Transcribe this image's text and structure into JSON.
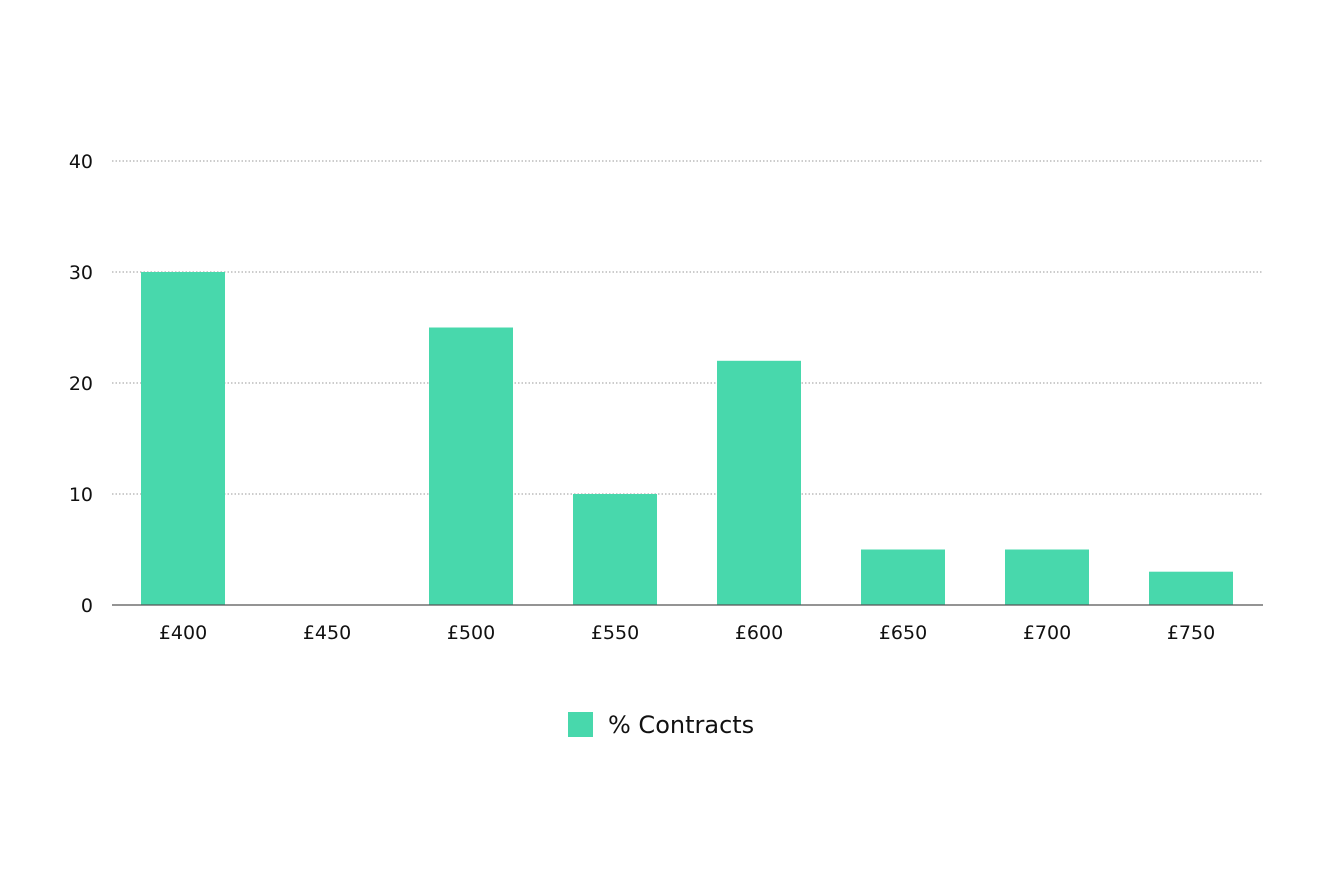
{
  "chart_data": {
    "type": "bar",
    "title": "",
    "xlabel": "",
    "ylabel": "",
    "categories": [
      "£400",
      "£450",
      "£500",
      "£550",
      "£600",
      "£650",
      "£700",
      "£750"
    ],
    "series": [
      {
        "name": "% Contracts",
        "values": [
          30,
          0,
          25,
          10,
          22,
          5,
          5,
          3
        ],
        "color": "#48d8ac"
      }
    ],
    "ylim": [
      0,
      40
    ],
    "yticks": [
      0,
      10,
      20,
      30,
      40
    ],
    "grid": true,
    "gridColor": "#9a9a9a",
    "axisColor": "#555555",
    "legend": {
      "position": "bottom-center"
    }
  }
}
